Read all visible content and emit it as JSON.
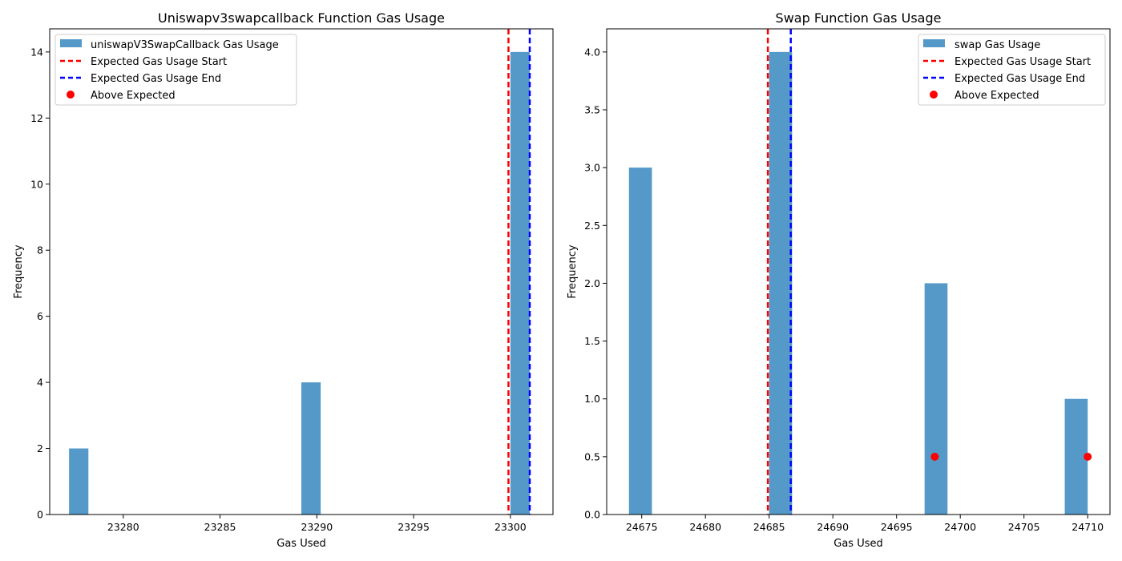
{
  "chart_data": [
    {
      "type": "bar",
      "title": "Uniswapv3swapcallback Function Gas Usage",
      "xlabel": "Gas Used",
      "ylabel": "Frequency",
      "xlim": [
        23276.2,
        23302.2
      ],
      "ylim": [
        0,
        14.7
      ],
      "xticks": [
        23280,
        23285,
        23290,
        23295,
        23300
      ],
      "yticks": [
        0,
        2,
        4,
        6,
        8,
        10,
        12,
        14
      ],
      "ytick_decimals": 0,
      "bar_color": "#5499c7",
      "bars": [
        {
          "x0": 23277.2,
          "x1": 23278.2,
          "value": 2
        },
        {
          "x0": 23289.2,
          "x1": 23290.2,
          "value": 4
        },
        {
          "x0": 23300.0,
          "x1": 23301.0,
          "value": 14
        }
      ],
      "expected_start": 23299.9,
      "expected_end": 23301.0,
      "above_expected_points": [],
      "legend": {
        "position": "top-left",
        "hist": "uniswapV3SwapCallback Gas Usage",
        "start": "Expected Gas Usage Start",
        "end": "Expected Gas Usage End",
        "above": "Above Expected"
      }
    },
    {
      "type": "bar",
      "title": "Swap Function Gas Usage",
      "xlabel": "Gas Used",
      "ylabel": "Frequency",
      "xlim": [
        24672.25,
        24711.75
      ],
      "ylim": [
        0,
        4.2
      ],
      "xticks": [
        24675,
        24680,
        24685,
        24690,
        24695,
        24700,
        24705,
        24710
      ],
      "yticks": [
        0.0,
        0.5,
        1.0,
        1.5,
        2.0,
        2.5,
        3.0,
        3.5,
        4.0
      ],
      "ytick_decimals": 1,
      "bar_color": "#5499c7",
      "bars": [
        {
          "x0": 24674.0,
          "x1": 24675.8,
          "value": 3
        },
        {
          "x0": 24685.0,
          "x1": 24686.8,
          "value": 4
        },
        {
          "x0": 24697.2,
          "x1": 24699.0,
          "value": 2
        },
        {
          "x0": 24708.2,
          "x1": 24710.0,
          "value": 1
        }
      ],
      "expected_start": 24684.9,
      "expected_end": 24686.7,
      "above_expected_points": [
        {
          "x": 24698,
          "y": 0.5
        },
        {
          "x": 24710,
          "y": 0.5
        }
      ],
      "legend": {
        "position": "top-right",
        "hist": "swap Gas Usage",
        "start": "Expected Gas Usage Start",
        "end": "Expected Gas Usage End",
        "above": "Above Expected"
      }
    }
  ],
  "colors": {
    "start_line": "#ff0000",
    "end_line": "#0000ff",
    "above_point": "#ff0000"
  }
}
